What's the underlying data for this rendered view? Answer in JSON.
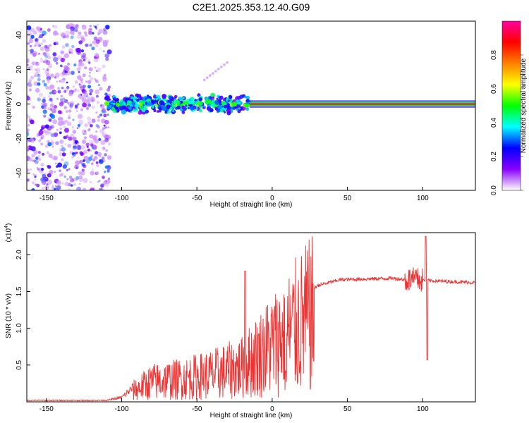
{
  "figure_title": "C2E1.2025.353.12.40.G09",
  "chart_data": [
    {
      "type": "heatmap",
      "title": "C2E1.2025.353.12.40.G09",
      "xlabel": "Height of straight line (km)",
      "ylabel": "Frequency (Hz)",
      "xlim": [
        -163,
        135
      ],
      "ylim": [
        -50,
        48
      ],
      "x_ticks": [
        -150,
        -100,
        -50,
        0,
        50,
        100
      ],
      "x_tick_labels": [
        "-150",
        "-100",
        "-50",
        "0",
        "50",
        "100"
      ],
      "y_ticks": [
        -40,
        -20,
        0,
        20,
        40
      ],
      "y_tick_labels": [
        "-40",
        "-20",
        "0",
        "20",
        "40"
      ],
      "colorbar": {
        "label": "Normalized spectral amplitude",
        "range": [
          0,
          1
        ],
        "ticks": [
          0,
          0.2,
          0.4,
          0.6,
          0.8
        ],
        "tick_labels": [
          "0.0",
          "0.2",
          "0.4",
          "0.6",
          "0.8"
        ],
        "colormap": "rainbow",
        "stops": [
          "#ffffff",
          "#8a00ff",
          "#0000ff",
          "#00ffff",
          "#00ff00",
          "#ffff00",
          "#ff8000",
          "#ff0000",
          "#ff00a0"
        ]
      },
      "regions": [
        {
          "name": "noise",
          "x": [
            -163,
            -108
          ],
          "freq": [
            -50,
            46
          ],
          "amplitude": 0.1
        },
        {
          "name": "onset",
          "x": [
            -110,
            -15
          ],
          "freq": [
            -6,
            6
          ],
          "amplitude": 0.35
        },
        {
          "name": "faint-arc",
          "x": [
            -45,
            -30
          ],
          "freq": [
            14,
            24
          ],
          "amplitude": 0.05
        },
        {
          "name": "carrier",
          "x": [
            -15,
            135
          ],
          "freq": [
            -1,
            1
          ],
          "amplitude": 0.95
        }
      ]
    },
    {
      "type": "line",
      "xlabel": "Height of straight line (km)",
      "ylabel": "SNR (10 * v/v)",
      "y_multiplier": "(x10^4)",
      "y_multiplier_base": "(x10",
      "y_multiplier_exp": "4",
      "y_multiplier_close": ")",
      "xlim": [
        -163,
        135
      ],
      "ylim": [
        0,
        2.3
      ],
      "x_ticks": [
        -150,
        -100,
        -50,
        0,
        50,
        100
      ],
      "x_tick_labels": [
        "-150",
        "-100",
        "-50",
        "0",
        "50",
        "100"
      ],
      "y_ticks": [
        0.5,
        1.0,
        1.5,
        2.0
      ],
      "y_tick_labels": [
        "0.5",
        "1.0",
        "1.5",
        "2.0"
      ],
      "series": [
        {
          "name": "SNR",
          "color": "#ee3333",
          "envelope": [
            {
              "x": -163,
              "y": 0.02
            },
            {
              "x": -110,
              "y": 0.02
            },
            {
              "x": -100,
              "y": 0.06
            },
            {
              "x": -92,
              "y": 0.2
            },
            {
              "x": -80,
              "y": 0.35
            },
            {
              "x": -60,
              "y": 0.4
            },
            {
              "x": -40,
              "y": 0.48
            },
            {
              "x": -20,
              "y": 0.6
            },
            {
              "x": -10,
              "y": 0.8
            },
            {
              "x": 0,
              "y": 1.0
            },
            {
              "x": 10,
              "y": 1.2
            },
            {
              "x": 20,
              "y": 1.4
            },
            {
              "x": 30,
              "y": 1.58
            },
            {
              "x": 45,
              "y": 1.66
            },
            {
              "x": 80,
              "y": 1.68
            },
            {
              "x": 90,
              "y": 1.66
            },
            {
              "x": 135,
              "y": 1.62
            }
          ],
          "features": [
            {
              "x": -18,
              "y": 1.78
            },
            {
              "x": 9,
              "y": 0.42
            },
            {
              "x": 102,
              "y": 2.25
            },
            {
              "x": 103,
              "y": 0.57
            }
          ]
        }
      ]
    }
  ]
}
